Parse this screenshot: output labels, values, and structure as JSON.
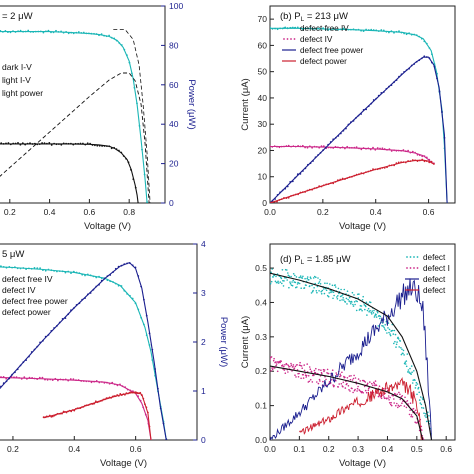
{
  "colors": {
    "cyan": "#1bb6b6",
    "navy": "#1b1f8f",
    "magenta": "#cc2a8a",
    "red": "#cc1f2f",
    "black": "#111111",
    "gray": "#555555",
    "blue": "#1c24c6"
  },
  "chart_data": [
    {
      "id": "a",
      "type": "line",
      "title": "= 2 μW",
      "xlabel": "Voltage (V)",
      "ylabel": "",
      "y2label": "Power (μW)",
      "xlim": [
        0.0,
        0.98
      ],
      "ylim": [
        0,
        100
      ],
      "y2lim": [
        0,
        100
      ],
      "xticks": [
        "0.2",
        "0.4",
        "0.6",
        "0.8"
      ],
      "xtickvals": [
        0.2,
        0.4,
        0.6,
        0.8
      ],
      "y2ticks": [
        "0",
        "20",
        "40",
        "60",
        "80",
        "100"
      ],
      "y2tickvals": [
        0,
        20,
        40,
        60,
        80,
        100
      ],
      "legend": {
        "position": "top-left",
        "entries": [
          "dark I-V",
          "light I-V",
          "light power"
        ]
      },
      "series": [
        {
          "name": "dark I-V",
          "style": "dots-black",
          "x": [
            0,
            0.1,
            0.2,
            0.3,
            0.4,
            0.5,
            0.6,
            0.65,
            0.7,
            0.73,
            0.76,
            0.79,
            0.81,
            0.83,
            0.84,
            0.845
          ],
          "y": [
            30,
            30,
            30,
            30,
            30,
            30,
            29.8,
            29.5,
            28.8,
            27.5,
            25.5,
            22,
            17,
            9,
            4,
            0
          ]
        },
        {
          "name": "light I-V",
          "style": "dots-cyan",
          "x": [
            0,
            0.1,
            0.2,
            0.3,
            0.4,
            0.5,
            0.6,
            0.65,
            0.7,
            0.74,
            0.77,
            0.8,
            0.82,
            0.84,
            0.86,
            0.88,
            0.89
          ],
          "y": [
            87,
            87,
            87,
            87,
            87,
            86.6,
            86,
            85.5,
            84.5,
            82.5,
            79,
            72,
            63,
            50,
            32,
            12,
            0
          ]
        },
        {
          "name": "light power",
          "style": "dash-black",
          "x": [
            0,
            0.2,
            0.4,
            0.6,
            0.7,
            0.76,
            0.8,
            0.83,
            0.86,
            0.88,
            0.9
          ],
          "y": [
            0,
            18,
            36,
            54,
            62.5,
            66,
            66,
            62,
            50,
            30,
            0
          ]
        },
        {
          "name": "",
          "style": "dash-black-thin",
          "x": [
            0.72,
            0.78,
            0.82,
            0.85,
            0.87,
            0.89,
            0.905
          ],
          "y": [
            88,
            88,
            83,
            70,
            50,
            25,
            0
          ]
        }
      ]
    },
    {
      "id": "b",
      "type": "line",
      "title": "(b) P = 213 μW",
      "title_sub": "L",
      "xlabel": "Voltage (V)",
      "ylabel": "Current (μA)",
      "xlim": [
        0.0,
        0.7
      ],
      "ylim": [
        0,
        75
      ],
      "xticks": [
        "0.0",
        "0.2",
        "0.4",
        "0.6"
      ],
      "xtickvals": [
        0,
        0.2,
        0.4,
        0.6
      ],
      "yticks": [
        "0",
        "10",
        "20",
        "30",
        "40",
        "50",
        "60",
        "70"
      ],
      "ytickvals": [
        0,
        10,
        20,
        30,
        40,
        50,
        60,
        70
      ],
      "legend": {
        "position": "top-left",
        "entries": [
          "defect free IV",
          "defect IV",
          "defect free power",
          "defect power"
        ]
      },
      "series": [
        {
          "name": "defect free IV",
          "style": "dots-cyan",
          "x": [
            0,
            0.1,
            0.2,
            0.3,
            0.4,
            0.5,
            0.55,
            0.58,
            0.61,
            0.63,
            0.65,
            0.66,
            0.67
          ],
          "y": [
            66.5,
            66.5,
            66.3,
            66,
            65.6,
            65,
            64,
            62.5,
            58,
            50,
            36,
            22,
            0
          ]
        },
        {
          "name": "defect IV",
          "style": "dots-magenta",
          "x": [
            0,
            0.1,
            0.2,
            0.3,
            0.4,
            0.5,
            0.55,
            0.58,
            0.6,
            0.61,
            0.62
          ],
          "y": [
            21.5,
            21.5,
            21.3,
            21,
            20.6,
            19.9,
            19,
            18,
            16.5,
            15.5,
            15
          ]
        },
        {
          "name": "defect free power",
          "style": "dots-navy",
          "x": [
            0,
            0.1,
            0.2,
            0.3,
            0.4,
            0.5,
            0.55,
            0.58,
            0.6,
            0.62,
            0.64,
            0.66,
            0.67
          ],
          "y": [
            0,
            10,
            20,
            30,
            39.5,
            49,
            53.5,
            55.5,
            55.5,
            52.5,
            44,
            26,
            0
          ]
        },
        {
          "name": "defect power",
          "style": "dots-red",
          "x": [
            0,
            0.1,
            0.2,
            0.3,
            0.4,
            0.5,
            0.55,
            0.58,
            0.6,
            0.62
          ],
          "y": [
            0,
            3.3,
            6.6,
            9.8,
            12.8,
            15.4,
            16.2,
            16.3,
            15.9,
            14.8
          ]
        }
      ]
    },
    {
      "id": "c",
      "type": "line",
      "title": "5 μW",
      "xlabel": "Voltage (V)",
      "ylabel": "",
      "y2label": "Power (μW)",
      "xlim": [
        0.06,
        0.8
      ],
      "ylim": [
        0,
        4
      ],
      "y2lim": [
        0,
        4
      ],
      "xticks": [
        "0.2",
        "0.4",
        "0.6"
      ],
      "xtickvals": [
        0.2,
        0.4,
        0.6
      ],
      "y2ticks": [
        "0",
        "1",
        "2",
        "3",
        "4"
      ],
      "y2tickvals": [
        0,
        1,
        2,
        3,
        4
      ],
      "legend": {
        "position": "top-left",
        "entries": [
          "defect free IV",
          "defect IV",
          "defect free power",
          "defect power"
        ]
      },
      "series": [
        {
          "name": "defect free IV",
          "style": "dots-cyan",
          "x": [
            0.06,
            0.1,
            0.2,
            0.3,
            0.4,
            0.5,
            0.55,
            0.6,
            0.63,
            0.65,
            0.67,
            0.69,
            0.7
          ],
          "y": [
            3.55,
            3.55,
            3.52,
            3.48,
            3.42,
            3.3,
            3.15,
            2.8,
            2.3,
            1.8,
            1.1,
            0.4,
            0
          ]
        },
        {
          "name": "defect IV",
          "style": "dots-magenta",
          "x": [
            0.06,
            0.1,
            0.2,
            0.3,
            0.4,
            0.5,
            0.55,
            0.6,
            0.62,
            0.64,
            0.65
          ],
          "y": [
            1.28,
            1.28,
            1.27,
            1.25,
            1.22,
            1.18,
            1.12,
            0.95,
            0.75,
            0.4,
            0
          ]
        },
        {
          "name": "defect free power",
          "style": "dots-navy",
          "x": [
            0.06,
            0.1,
            0.2,
            0.3,
            0.4,
            0.5,
            0.55,
            0.58,
            0.6,
            0.62,
            0.64,
            0.66,
            0.68,
            0.7
          ],
          "y": [
            0.3,
            0.65,
            1.35,
            2.05,
            2.7,
            3.3,
            3.55,
            3.62,
            3.5,
            3.1,
            2.4,
            1.6,
            0.7,
            0
          ]
        },
        {
          "name": "defect power",
          "style": "dots-red",
          "x": [
            0.3,
            0.4,
            0.5,
            0.55,
            0.6,
            0.62,
            0.64,
            0.65
          ],
          "y": [
            0.45,
            0.62,
            0.83,
            0.92,
            0.98,
            0.93,
            0.55,
            0
          ]
        }
      ]
    },
    {
      "id": "d",
      "type": "line",
      "title": "(d) P = 1.85 μW",
      "title_sub": "L",
      "xlabel": "Voltage (V)",
      "ylabel": "Current (μA)",
      "xlim": [
        0.0,
        0.63
      ],
      "ylim": [
        0,
        0.57
      ],
      "xticks": [
        "0.0",
        "0.1",
        "0.2",
        "0.3",
        "0.4",
        "0.5",
        "0.6"
      ],
      "xtickvals": [
        0,
        0.1,
        0.2,
        0.3,
        0.4,
        0.5,
        0.6
      ],
      "yticks": [
        "0.0",
        "0.1",
        "0.2",
        "0.3",
        "0.4",
        "0.5"
      ],
      "ytickvals": [
        0,
        0.1,
        0.2,
        0.3,
        0.4,
        0.5
      ],
      "legend": {
        "position": "top-right",
        "entries": [
          "defect",
          "defect I",
          "defect",
          "defect"
        ]
      },
      "series": [
        {
          "name": "defect",
          "style": "noisy-cyan",
          "x": [
            0,
            0.05,
            0.1,
            0.15,
            0.2,
            0.25,
            0.3,
            0.35,
            0.4,
            0.45,
            0.5,
            0.52,
            0.54,
            0.55
          ],
          "y": [
            0.48,
            0.47,
            0.46,
            0.45,
            0.44,
            0.42,
            0.4,
            0.37,
            0.33,
            0.26,
            0.15,
            0.1,
            0.05,
            0
          ]
        },
        {
          "name": "defect I",
          "style": "noisy-magenta",
          "x": [
            0,
            0.05,
            0.1,
            0.15,
            0.2,
            0.25,
            0.3,
            0.35,
            0.4,
            0.45,
            0.5,
            0.52
          ],
          "y": [
            0.22,
            0.21,
            0.2,
            0.19,
            0.18,
            0.17,
            0.16,
            0.15,
            0.13,
            0.11,
            0.07,
            0.02
          ]
        },
        {
          "name": "defect",
          "style": "noisy-navy",
          "x": [
            0,
            0.1,
            0.2,
            0.3,
            0.35,
            0.4,
            0.45,
            0.48,
            0.5,
            0.52,
            0.53,
            0.54,
            0.55
          ],
          "y": [
            0,
            0.08,
            0.17,
            0.26,
            0.31,
            0.36,
            0.42,
            0.44,
            0.43,
            0.38,
            0.28,
            0.15,
            0
          ]
        },
        {
          "name": "defect",
          "style": "noisy-red",
          "x": [
            0.1,
            0.15,
            0.2,
            0.25,
            0.3,
            0.35,
            0.4,
            0.45,
            0.48,
            0.5,
            0.52
          ],
          "y": [
            0.02,
            0.04,
            0.06,
            0.09,
            0.11,
            0.13,
            0.15,
            0.16,
            0.14,
            0.1,
            0
          ]
        },
        {
          "name": "",
          "style": "line-black",
          "x": [
            0,
            0.1,
            0.2,
            0.3,
            0.4,
            0.45,
            0.5,
            0.53,
            0.55
          ],
          "y": [
            0.485,
            0.465,
            0.44,
            0.41,
            0.36,
            0.3,
            0.2,
            0.1,
            0
          ]
        },
        {
          "name": "",
          "style": "line-black",
          "x": [
            0,
            0.1,
            0.2,
            0.3,
            0.4,
            0.45,
            0.5,
            0.52
          ],
          "y": [
            0.215,
            0.2,
            0.185,
            0.165,
            0.14,
            0.12,
            0.07,
            0
          ]
        }
      ]
    }
  ]
}
